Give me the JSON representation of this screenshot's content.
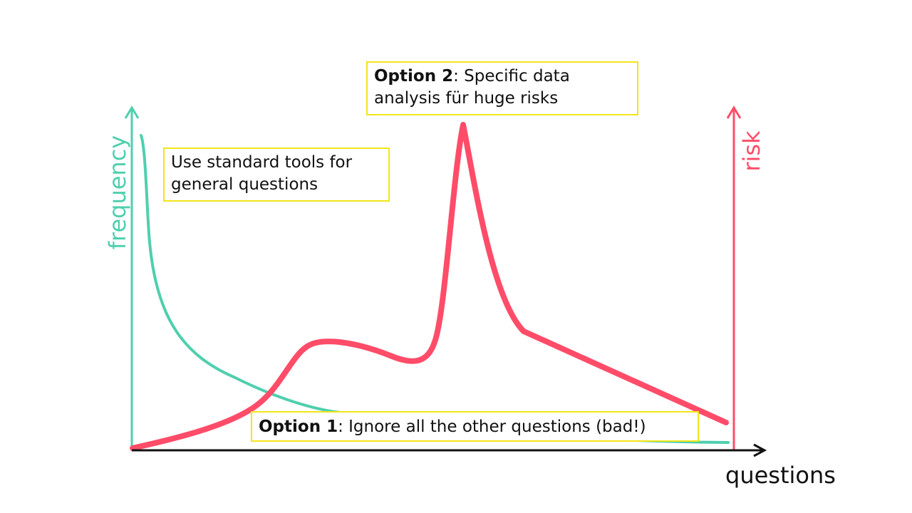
{
  "colors": {
    "frequency": "#4fcfae",
    "risk": "#ff4c69",
    "axis": "#111111",
    "note_border": "#f2e51a"
  },
  "axes": {
    "x_label": "questions",
    "left_y_label": "frequency",
    "right_y_label": "risk"
  },
  "notes": {
    "general": {
      "text": "Use standard tools for general questions"
    },
    "option2": {
      "bold": "Option 2",
      "rest": ": Specific data analysis für huge risks"
    },
    "option1": {
      "bold": "Option 1",
      "rest": ": Ignore all the other questions (bad!)"
    }
  },
  "curves": {
    "frequency": {
      "name": "frequency",
      "shape": "rapid decay from high at left toward near zero at right"
    },
    "risk": {
      "name": "risk",
      "shape": "low at left, local hump, sharp peak near middle, linear decline to right"
    }
  }
}
